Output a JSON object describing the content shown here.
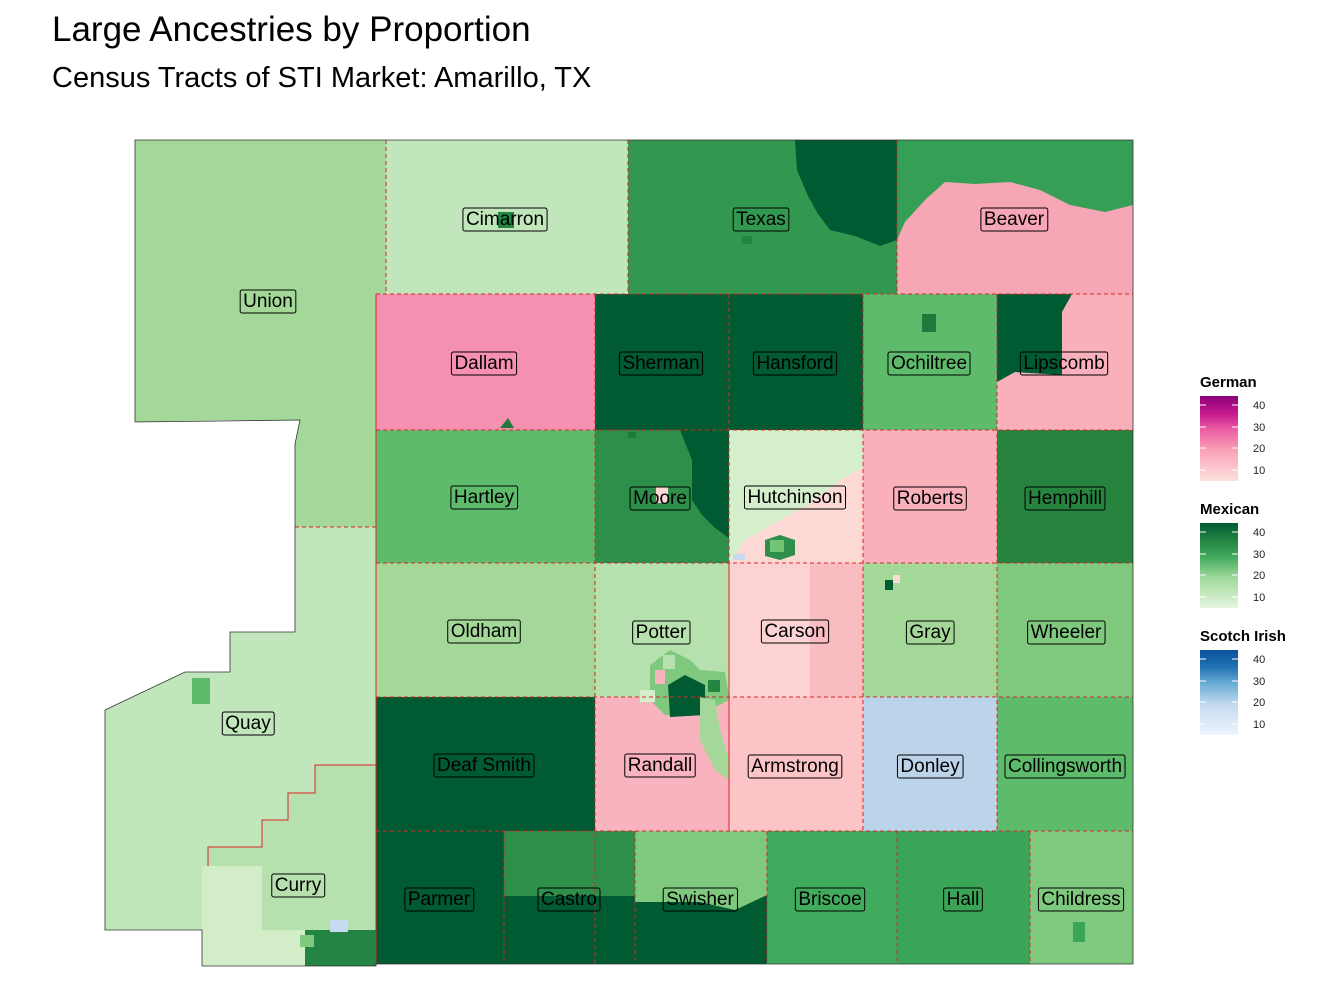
{
  "title": "Large Ancestries by Proportion",
  "subtitle": "Census Tracts of STI Market: Amarillo, TX",
  "colors": {
    "german_scale": [
      "#fde0dd",
      "#f9a4b8",
      "#ed5ea3",
      "#c5178e",
      "#8a0179"
    ],
    "mexican_scale": [
      "#e5f5e0",
      "#c0e6b9",
      "#7fc97f",
      "#41ab5d",
      "#005a32"
    ],
    "scotch_irish_scale": [
      "#eff3ff",
      "#c6dbef",
      "#6baed6",
      "#2171b5",
      "#08519c"
    ],
    "county_border": "#d62728"
  },
  "legend": [
    {
      "key": "german",
      "title": "German",
      "ticks": [
        "40",
        "30",
        "20",
        "10"
      ]
    },
    {
      "key": "mexican",
      "title": "Mexican",
      "ticks": [
        "40",
        "30",
        "20",
        "10"
      ]
    },
    {
      "key": "scotch_irish",
      "title": "Scotch Irish",
      "ticks": [
        "40",
        "30",
        "20",
        "10"
      ]
    }
  ],
  "counties": [
    {
      "name": "Cimarron",
      "ancestry": "Mexican",
      "level": 9
    },
    {
      "name": "Texas",
      "ancestry": "Mexican",
      "level": 28
    },
    {
      "name": "Beaver",
      "ancestry": "German",
      "level": 12
    },
    {
      "name": "Union",
      "ancestry": "Mexican",
      "level": 14
    },
    {
      "name": "Dallam",
      "ancestry": "German",
      "level": 16
    },
    {
      "name": "Sherman",
      "ancestry": "Mexican",
      "level": 42
    },
    {
      "name": "Hansford",
      "ancestry": "Mexican",
      "level": 42
    },
    {
      "name": "Ochiltree",
      "ancestry": "Mexican",
      "level": 22
    },
    {
      "name": "Lipscomb",
      "ancestry": "German",
      "level": 11
    },
    {
      "name": "Hartley",
      "ancestry": "Mexican",
      "level": 22
    },
    {
      "name": "Moore",
      "ancestry": "Mexican",
      "level": 30
    },
    {
      "name": "Hutchinson",
      "ancestry": "Mexican",
      "level": 6
    },
    {
      "name": "Roberts",
      "ancestry": "German",
      "level": 11
    },
    {
      "name": "Hemphill",
      "ancestry": "Mexican",
      "level": 33
    },
    {
      "name": "Oldham",
      "ancestry": "Mexican",
      "level": 15
    },
    {
      "name": "Potter",
      "ancestry": "Mexican",
      "level": 11
    },
    {
      "name": "Carson",
      "ancestry": "German",
      "level": 8
    },
    {
      "name": "Gray",
      "ancestry": "Mexican",
      "level": 14
    },
    {
      "name": "Wheeler",
      "ancestry": "Mexican",
      "level": 18
    },
    {
      "name": "Quay",
      "ancestry": "Mexican",
      "level": 10
    },
    {
      "name": "Deaf Smith",
      "ancestry": "Mexican",
      "level": 44
    },
    {
      "name": "Randall",
      "ancestry": "German",
      "level": 11
    },
    {
      "name": "Armstrong",
      "ancestry": "German",
      "level": 9
    },
    {
      "name": "Donley",
      "ancestry": "Scotch Irish",
      "level": 12
    },
    {
      "name": "Collingsworth",
      "ancestry": "Mexican",
      "level": 22
    },
    {
      "name": "Curry",
      "ancestry": "Mexican",
      "level": 6
    },
    {
      "name": "Parmer",
      "ancestry": "Mexican",
      "level": 42
    },
    {
      "name": "Castro",
      "ancestry": "Mexican",
      "level": 44
    },
    {
      "name": "Swisher",
      "ancestry": "Mexican",
      "level": 18
    },
    {
      "name": "Briscoe",
      "ancestry": "Mexican",
      "level": 26
    },
    {
      "name": "Hall",
      "ancestry": "Mexican",
      "level": 27
    },
    {
      "name": "Childress",
      "ancestry": "Mexican",
      "level": 18
    }
  ]
}
